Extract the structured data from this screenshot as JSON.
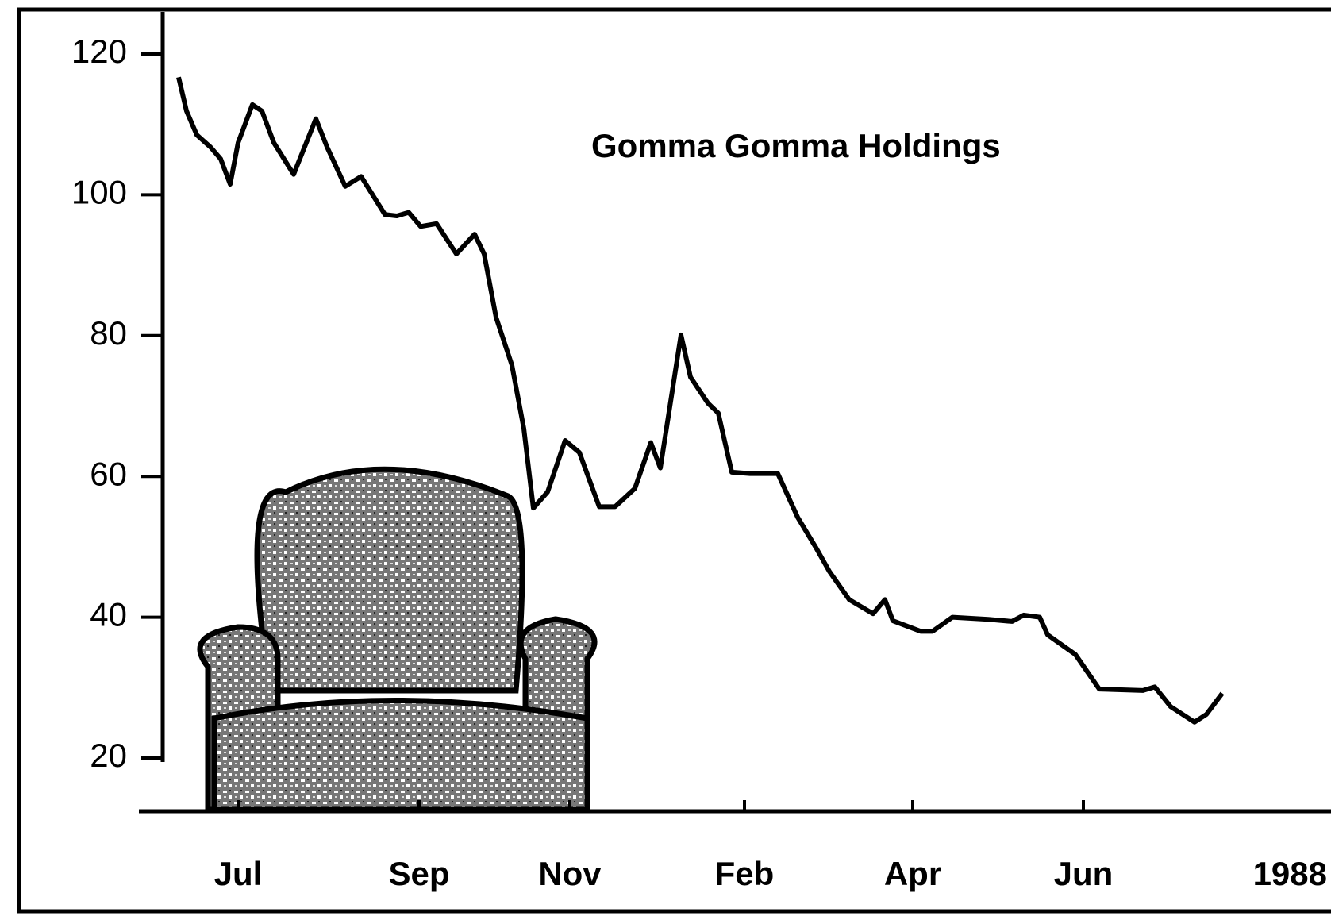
{
  "chart_data": {
    "type": "line",
    "title": "Gomma Gomma Holdings",
    "year_label": "1988",
    "x": [
      2.0,
      3.0,
      4.3,
      6.0,
      7.3,
      8.5,
      9.5,
      11.3,
      12.5,
      14.0,
      16.5,
      19.3,
      20.7,
      23.0,
      25.0,
      28.0,
      29.5,
      31.0,
      32.5,
      34.5,
      37.0,
      39.3,
      40.5,
      42.0,
      44.0,
      45.5,
      46.7,
      48.5,
      50.7,
      52.5,
      55.0,
      57.0,
      59.5,
      61.5,
      62.7,
      65.3,
      66.5,
      68.7,
      70.0,
      71.7,
      74.0,
      77.5,
      80.0,
      82.3,
      84.0,
      86.5,
      89.5,
      91.0,
      92.0,
      95.5,
      97.0,
      99.5,
      104.0,
      107.0,
      108.5,
      110.5,
      111.5,
      115.0,
      118.0,
      123.5,
      125.0,
      127.0,
      130.0,
      131.5,
      133.5
    ],
    "series": [
      {
        "color": "#000000",
        "values": [
          116.7,
          111.9,
          108.5,
          106.8,
          105.1,
          101.5,
          107.4,
          112.8,
          111.9,
          107.4,
          102.9,
          110.8,
          106.8,
          101.2,
          102.6,
          97.2,
          97.0,
          97.5,
          95.5,
          95.9,
          91.6,
          94.4,
          91.6,
          82.6,
          75.8,
          66.8,
          55.5,
          57.8,
          65.1,
          63.4,
          55.7,
          55.7,
          58.3,
          64.8,
          61.2,
          80.1,
          74.1,
          70.4,
          69.0,
          60.6,
          60.4,
          60.4,
          54.2,
          49.9,
          46.5,
          42.5,
          40.5,
          42.5,
          39.5,
          38.0,
          38.0,
          40.0,
          39.7,
          39.4,
          40.3,
          40.0,
          37.5,
          34.7,
          29.8,
          29.6,
          30.1,
          27.3,
          25.1,
          26.2,
          29.2
        ]
      }
    ],
    "xlim": [
      0,
      147.2
    ],
    "xticks": [
      {
        "value": 9.5,
        "label": "Jul"
      },
      {
        "value": 32.3,
        "label": "Sep"
      },
      {
        "value": 51.3,
        "label": "Nov"
      },
      {
        "value": 73.3,
        "label": "Feb"
      },
      {
        "value": 94.5,
        "label": "Apr"
      },
      {
        "value": 116,
        "label": "Jun"
      }
    ],
    "ylim": [
      20,
      120
    ],
    "yticks": [
      20,
      40,
      60,
      80,
      100,
      120
    ],
    "grid": false
  }
}
